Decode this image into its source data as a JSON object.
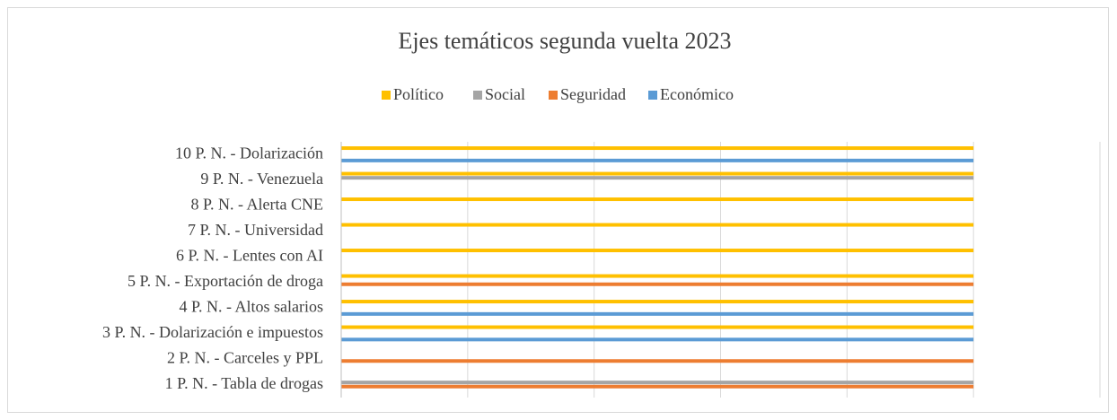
{
  "chart_data": {
    "type": "hbar",
    "title": "Ejes temáticos segunda vuelta 2023",
    "categories": [
      "1 P. N.  - Tabla de drogas",
      "2 P. N.  - Carceles y PPL",
      "3 P. N.  - Dolarización e impuestos",
      "4 P. N.  - Altos salarios",
      "5 P. N.  - Exportación de droga",
      "6 P. N.  - Lentes con AI",
      "7 P. N.  - Universidad",
      "8 P. N.  - Alerta CNE",
      "9 P. N.  - Venezuela",
      "10 P. N.  - Dolarización"
    ],
    "series": [
      {
        "name": "Político",
        "color": "#ffc000",
        "values": [
          0,
          0,
          1,
          1,
          1,
          1,
          1,
          1,
          1,
          1
        ]
      },
      {
        "name": "Social",
        "color": "#a5a5a5",
        "values": [
          1,
          0,
          0,
          0,
          0,
          0,
          0,
          0,
          1,
          0
        ]
      },
      {
        "name": "Seguridad",
        "color": "#ed7d31",
        "values": [
          1,
          1,
          0,
          0,
          1,
          0,
          0,
          0,
          0,
          0
        ]
      },
      {
        "name": "Económico",
        "color": "#5b9bd5",
        "values": [
          0,
          0,
          1,
          1,
          0,
          0,
          0,
          0,
          0,
          1
        ]
      }
    ],
    "xlim": [
      0,
      1.2
    ],
    "xticks": [
      0,
      0.2,
      0.4,
      0.6,
      0.8,
      1,
      1.2
    ],
    "grid": true,
    "legend": "top"
  }
}
